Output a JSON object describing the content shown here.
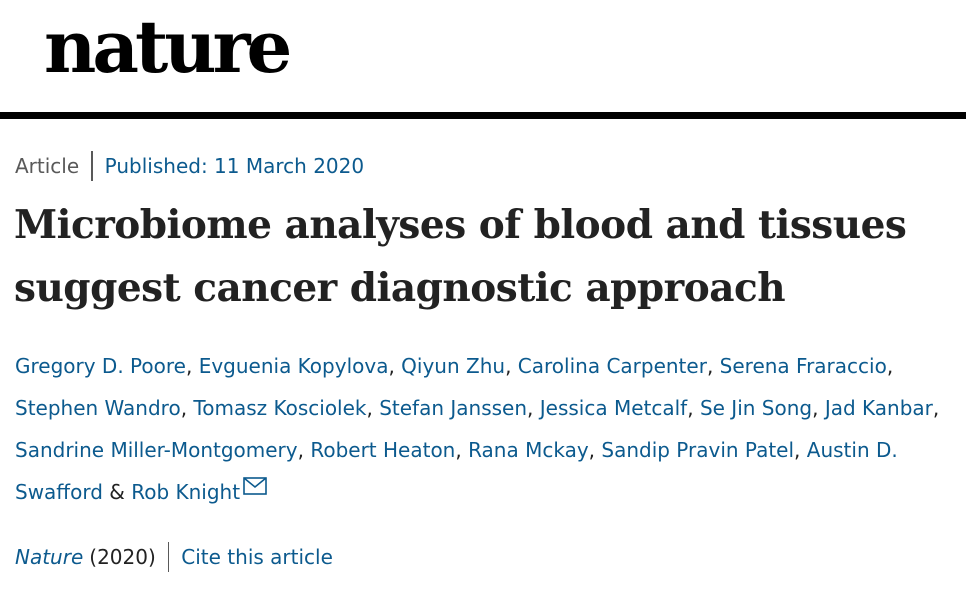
{
  "masthead": {
    "logo_text": "nature"
  },
  "article": {
    "type": "Article",
    "published": "Published: 11 March 2020",
    "title": "Microbiome analyses of blood and tissues suggest cancer diagnostic approach",
    "authors": [
      "Gregory D. Poore",
      "Evguenia Kopylova",
      "Qiyun Zhu",
      "Carolina Carpenter",
      "Serena Fraraccio",
      "Stephen Wandro",
      "Tomasz Kosciolek",
      "Stefan Janssen",
      "Jessica Metcalf",
      "Se Jin Song",
      "Jad Kanbar",
      "Sandrine Miller-Montgomery",
      "Robert Heaton",
      "Rana Mckay",
      "Sandip Pravin Patel",
      "Austin D. Swafford",
      "Rob Knight"
    ],
    "author_separator": ", ",
    "author_conjunction": " & ",
    "corresponding_icon": "envelope-icon",
    "journal": "Nature",
    "year": "(2020)",
    "cite_label": "Cite this article"
  },
  "colors": {
    "link": "#0c5a8e",
    "text": "#222222",
    "muted": "#595959"
  }
}
